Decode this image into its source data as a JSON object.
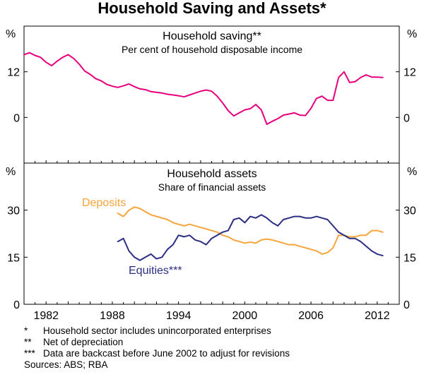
{
  "chart_data": {
    "title": "Household Saving and Assets*",
    "panels": [
      {
        "type": "line",
        "title": "Household saving**",
        "subtitle": "Per cent of household disposable income",
        "unit": "%",
        "ylim": [
          -12,
          24
        ],
        "yticks": [
          0,
          12
        ],
        "xlim": [
          1980,
          2014
        ],
        "series": [
          {
            "name": "Household saving",
            "color": "#e6007e",
            "x": [
              1980.0,
              1980.5,
              1981.0,
              1981.5,
              1982.0,
              1982.5,
              1983.0,
              1983.5,
              1984.0,
              1984.5,
              1985.0,
              1985.5,
              1986.0,
              1986.5,
              1987.0,
              1987.5,
              1988.0,
              1988.5,
              1989.0,
              1989.5,
              1990.0,
              1990.5,
              1991.0,
              1991.5,
              1992.0,
              1992.5,
              1993.0,
              1993.5,
              1994.0,
              1994.5,
              1995.0,
              1995.5,
              1996.0,
              1996.5,
              1997.0,
              1997.5,
              1998.0,
              1998.5,
              1999.0,
              1999.5,
              2000.0,
              2000.5,
              2001.0,
              2001.5,
              2002.0,
              2002.5,
              2003.0,
              2003.5,
              2004.0,
              2004.5,
              2005.0,
              2005.5,
              2006.0,
              2006.5,
              2007.0,
              2007.5,
              2008.0,
              2008.5,
              2009.0,
              2009.5,
              2010.0,
              2010.5,
              2011.0,
              2011.5,
              2012.0,
              2012.5
            ],
            "values": [
              16.5,
              17.0,
              16.3,
              15.8,
              14.5,
              13.6,
              14.8,
              15.8,
              16.5,
              15.5,
              14.0,
              12.2,
              11.3,
              10.2,
              9.6,
              8.7,
              8.2,
              7.9,
              8.3,
              8.8,
              8.1,
              7.5,
              7.3,
              6.8,
              6.6,
              6.4,
              6.1,
              5.9,
              5.7,
              5.4,
              5.9,
              6.4,
              6.9,
              7.2,
              6.9,
              5.6,
              3.8,
              1.8,
              0.4,
              1.2,
              2.0,
              2.3,
              3.4,
              2.0,
              -1.8,
              -1.0,
              -0.3,
              0.6,
              0.9,
              1.2,
              0.6,
              0.5,
              2.4,
              5.0,
              5.6,
              4.5,
              4.5,
              10.5,
              12.0,
              9.2,
              9.4,
              10.5,
              11.2,
              10.6,
              10.6,
              10.5
            ]
          }
        ]
      },
      {
        "type": "line",
        "title": "Household assets",
        "subtitle": "Share of financial assets",
        "unit": "%",
        "ylim": [
          0,
          45
        ],
        "yticks": [
          0,
          15,
          30
        ],
        "xlim": [
          1980,
          2014
        ],
        "series": [
          {
            "name": "Deposits",
            "color": "#f7a43b",
            "label": "Deposits",
            "x": [
              1988.5,
              1989.0,
              1989.5,
              1990.0,
              1990.5,
              1991.0,
              1991.5,
              1992.0,
              1992.5,
              1993.0,
              1993.5,
              1994.0,
              1994.5,
              1995.0,
              1995.5,
              1996.0,
              1996.5,
              1997.0,
              1997.5,
              1998.0,
              1998.5,
              1999.0,
              1999.5,
              2000.0,
              2000.5,
              2001.0,
              2001.5,
              2002.0,
              2002.5,
              2003.0,
              2003.5,
              2004.0,
              2004.5,
              2005.0,
              2005.5,
              2006.0,
              2006.5,
              2007.0,
              2007.5,
              2008.0,
              2008.5,
              2009.0,
              2009.5,
              2010.0,
              2010.5,
              2011.0,
              2011.5,
              2012.0,
              2012.5
            ],
            "values": [
              29.0,
              28.0,
              30.0,
              31.0,
              30.5,
              29.5,
              28.5,
              28.0,
              27.5,
              27.0,
              26.0,
              25.5,
              25.0,
              25.5,
              25.0,
              24.5,
              24.0,
              23.5,
              23.0,
              22.0,
              21.5,
              20.5,
              20.0,
              19.5,
              19.8,
              19.5,
              20.5,
              20.8,
              20.5,
              20.0,
              19.5,
              19.0,
              19.0,
              18.5,
              18.0,
              17.5,
              17.0,
              16.0,
              16.5,
              18.0,
              22.0,
              22.0,
              21.5,
              21.5,
              22.0,
              22.0,
              23.5,
              23.5,
              23.0
            ]
          },
          {
            "name": "Equities",
            "color": "#2b2e83",
            "label": "Equities***",
            "x": [
              1988.5,
              1989.0,
              1989.5,
              1990.0,
              1990.5,
              1991.0,
              1991.5,
              1992.0,
              1992.5,
              1993.0,
              1993.5,
              1994.0,
              1994.5,
              1995.0,
              1995.5,
              1996.0,
              1996.5,
              1997.0,
              1997.5,
              1998.0,
              1998.5,
              1999.0,
              1999.5,
              2000.0,
              2000.5,
              2001.0,
              2001.5,
              2002.0,
              2002.5,
              2003.0,
              2003.5,
              2004.0,
              2004.5,
              2005.0,
              2005.5,
              2006.0,
              2006.5,
              2007.0,
              2007.5,
              2008.0,
              2008.5,
              2009.0,
              2009.5,
              2010.0,
              2010.5,
              2011.0,
              2011.5,
              2012.0,
              2012.5
            ],
            "values": [
              20.0,
              21.0,
              17.0,
              15.0,
              14.0,
              15.0,
              16.0,
              14.5,
              15.0,
              17.5,
              19.0,
              22.0,
              21.5,
              22.0,
              20.5,
              20.0,
              19.0,
              21.0,
              22.0,
              23.0,
              23.5,
              27.0,
              27.5,
              26.0,
              28.0,
              27.5,
              28.5,
              27.5,
              26.0,
              25.0,
              27.0,
              27.5,
              28.0,
              28.0,
              27.5,
              27.5,
              28.0,
              27.5,
              27.0,
              25.0,
              23.0,
              22.0,
              21.0,
              21.0,
              20.0,
              18.5,
              17.0,
              16.0,
              15.5
            ]
          }
        ]
      }
    ],
    "xticks": [
      "1982",
      "1988",
      "1994",
      "2000",
      "2006",
      "2012"
    ],
    "xtick_years": [
      1982,
      1988,
      1994,
      2000,
      2006,
      2012
    ]
  },
  "notes": [
    {
      "mark": "*",
      "text": "Household sector includes unincorporated enterprises"
    },
    {
      "mark": "**",
      "text": "Net of depreciation"
    },
    {
      "mark": "***",
      "text": "Data are backcast before June 2002 to adjust for revisions"
    }
  ],
  "sources": "Sources: ABS; RBA"
}
